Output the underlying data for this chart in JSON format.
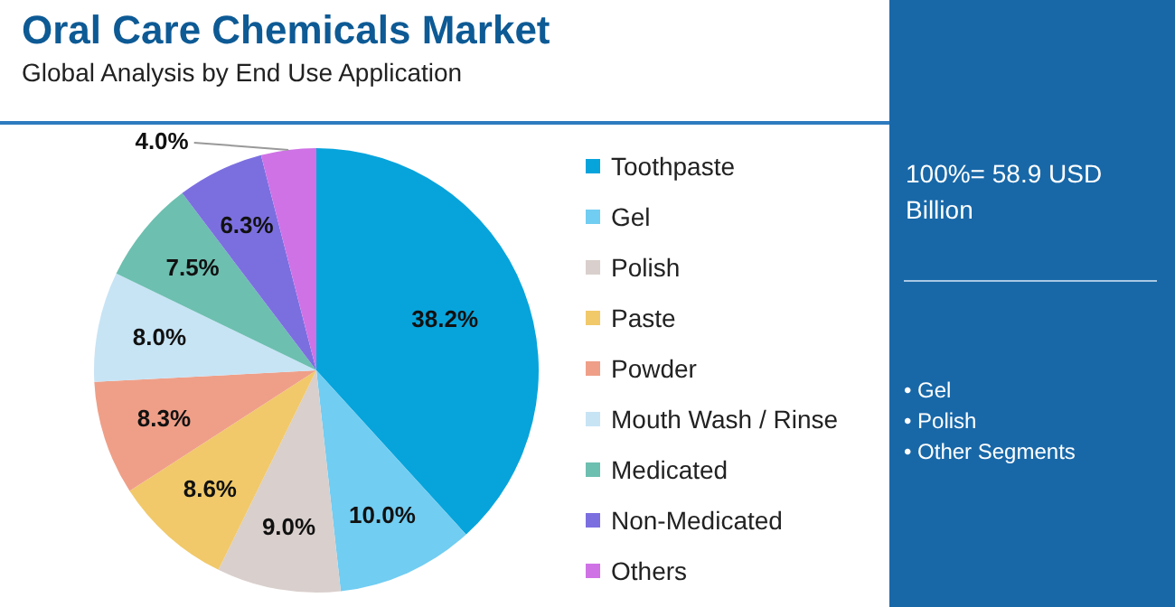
{
  "chart_data": {
    "type": "pie",
    "title": "Oral Care Chemicals Market",
    "subtitle": "Global Analysis by End Use Application",
    "categories": [
      "Toothpaste",
      "Gel",
      "Polish",
      "Paste",
      "Powder",
      "Mouth Wash / Rinse",
      "Medicated",
      "Non-Medicated",
      "Others"
    ],
    "values": [
      38.2,
      10.0,
      9.0,
      8.6,
      8.3,
      8.0,
      7.5,
      6.3,
      4.0
    ],
    "colors": [
      "#07a4dc",
      "#71cdf2",
      "#d9cfcc",
      "#f1c96a",
      "#ef9f88",
      "#c7e4f5",
      "#6dbfb0",
      "#7b6fe0",
      "#cf72e6"
    ],
    "value_labels": [
      "38.2%",
      "10.0%",
      "9.0%",
      "8.6%",
      "8.3%",
      "8.0%",
      "7.5%",
      "6.3%",
      "4.0%"
    ],
    "legend": "right",
    "annotations": [
      "100%= 58.9 USD Billion",
      "• Gel",
      "• Polish",
      "• Other Segments"
    ]
  }
}
